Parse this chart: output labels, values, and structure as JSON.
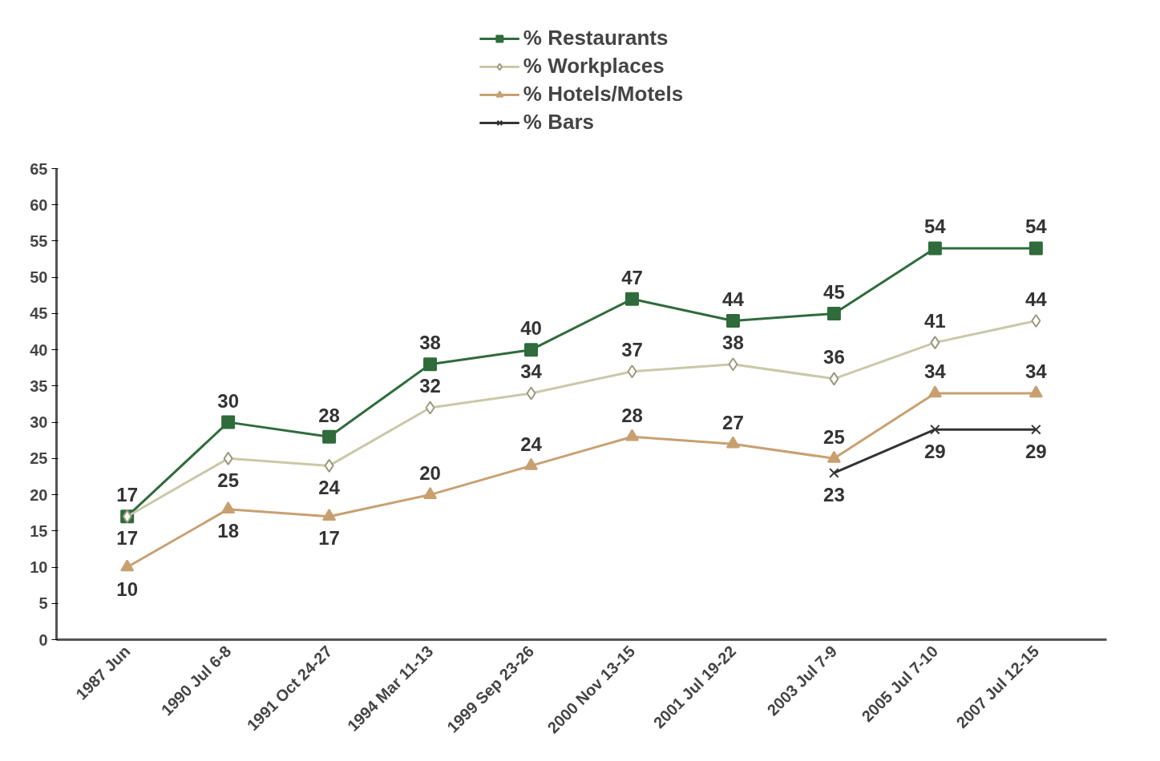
{
  "chart_data": {
    "type": "line",
    "categories": [
      "1987 Jun",
      "1990 Jul 6-8",
      "1991 Oct 24-27",
      "1994 Mar 11-13",
      "1999 Sep 23-26",
      "2000 Nov 13-15",
      "2001 Jul 19-22",
      "2003 Jul 7-9",
      "2005 Jul 7-10",
      "2007 Jul 12-15"
    ],
    "series": [
      {
        "name": "% Restaurants",
        "color": "#2f6b3b",
        "marker": "square",
        "values": [
          17,
          30,
          28,
          38,
          40,
          47,
          44,
          45,
          54,
          54
        ]
      },
      {
        "name": "% Workplaces",
        "color": "#c9c9a8",
        "marker": "diamond",
        "values": [
          17,
          25,
          24,
          32,
          34,
          37,
          38,
          36,
          41,
          44
        ]
      },
      {
        "name": "% Hotels/Motels",
        "color": "#c8a070",
        "marker": "triangle",
        "values": [
          10,
          18,
          17,
          20,
          24,
          28,
          27,
          25,
          34,
          34
        ]
      },
      {
        "name": "% Bars",
        "color": "#333333",
        "marker": "cross",
        "values": [
          null,
          null,
          null,
          null,
          null,
          null,
          null,
          23,
          29,
          29
        ]
      }
    ],
    "ylim": [
      0,
      65
    ],
    "yticks": [
      0,
      5,
      10,
      15,
      20,
      25,
      30,
      35,
      40,
      45,
      50,
      55,
      60,
      65
    ],
    "grid": false,
    "legend": "top",
    "data_labels": true,
    "line_style": "solid"
  }
}
